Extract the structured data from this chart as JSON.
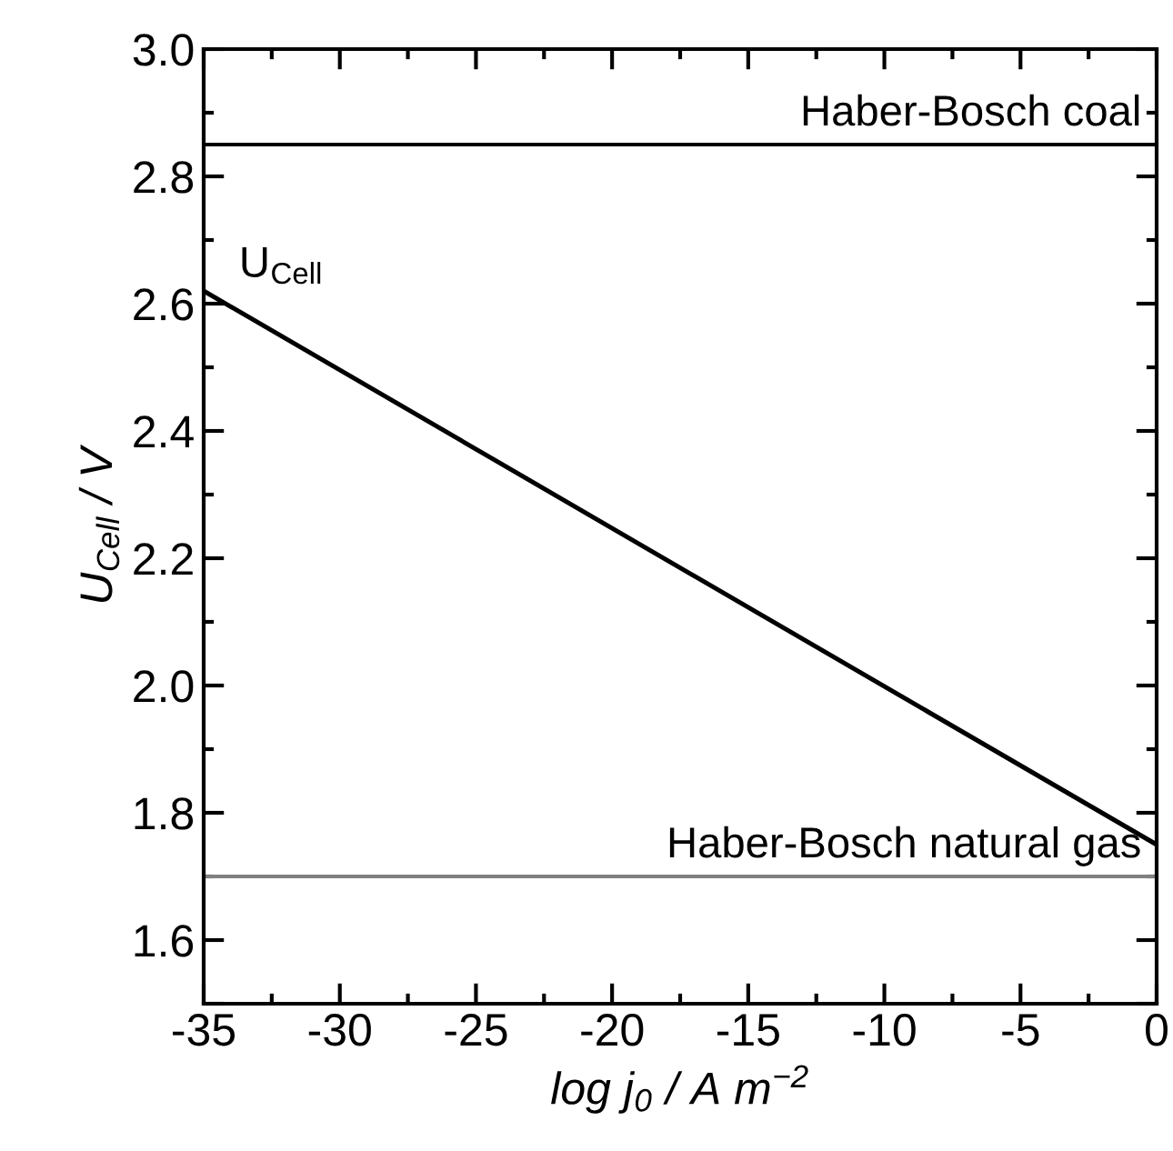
{
  "chart_data": {
    "type": "line",
    "xlabel": "log j$_{0}$ / A m$^{−2}$",
    "ylabel": "U$_{Cell}$ / V",
    "x": [
      -35,
      0
    ],
    "series": [
      {
        "name": "U$_{Cell}$",
        "color": "#000000",
        "values": [
          2.62,
          1.75
        ]
      }
    ],
    "xlim": [
      -35,
      0
    ],
    "xticks": [
      -35,
      -30,
      -25,
      -20,
      -15,
      -10,
      -5,
      0
    ],
    "ylim": [
      1.5,
      3.0
    ],
    "yticks": [
      {
        "value": 1.5,
        "label": null
      },
      {
        "value": 1.6,
        "label": "1.6"
      },
      {
        "value": 1.8,
        "label": "1.8"
      },
      {
        "value": 2.0,
        "label": "2.0"
      },
      {
        "value": 2.2,
        "label": "2.2"
      },
      {
        "value": 2.4,
        "label": "2.4"
      },
      {
        "value": 2.6,
        "label": "2.6"
      },
      {
        "value": 2.8,
        "label": "2.8"
      },
      {
        "value": 3.0,
        "label": "3.0"
      }
    ],
    "ref_lines": [
      {
        "axis": "y",
        "value": 2.85,
        "label": "Haber-Bosch coal",
        "color": "#000000"
      },
      {
        "axis": "y",
        "value": 1.7,
        "label": "Haber-Bosch natural gas",
        "color": "#808080"
      }
    ],
    "grid": false,
    "legend": false,
    "line_style": "solid",
    "marker": "none"
  }
}
